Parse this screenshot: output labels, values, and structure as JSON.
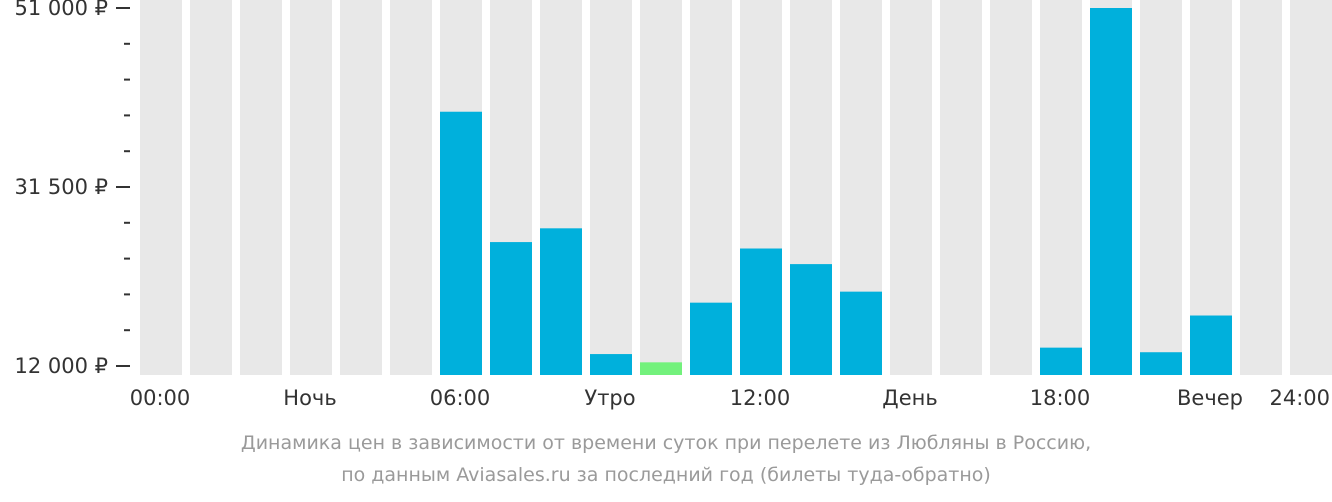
{
  "chart_data": {
    "type": "bar",
    "categories": [
      "00:00",
      "01:00",
      "02:00",
      "03:00",
      "04:00",
      "05:00",
      "06:00",
      "07:00",
      "08:00",
      "09:00",
      "10:00",
      "11:00",
      "12:00",
      "13:00",
      "14:00",
      "15:00",
      "16:00",
      "17:00",
      "18:00",
      "19:00",
      "20:00",
      "21:00",
      "22:00",
      "23:00"
    ],
    "values": [
      null,
      null,
      null,
      null,
      null,
      null,
      39700,
      25500,
      27000,
      13300,
      12400,
      18900,
      24800,
      23100,
      20100,
      null,
      null,
      null,
      14000,
      51000,
      13500,
      17500,
      null,
      null
    ],
    "highlight_index": 10,
    "ylim": [
      12000,
      51000
    ],
    "yticks": [
      "51 000 ₽",
      "31 500 ₽",
      "12 000 ₽"
    ],
    "yticks_values": [
      51000,
      31500,
      12000
    ],
    "minor_ticks_per_interval": 4,
    "xticks": [
      "00:00",
      "Ночь",
      "06:00",
      "Утро",
      "12:00",
      "День",
      "18:00",
      "Вечер",
      "24:00"
    ],
    "colors": {
      "bar": "#00b0dc",
      "highlight": "#73f17c",
      "background_slot": "#e8e8e8",
      "axis": "#333333"
    }
  },
  "caption": {
    "line1": "Динамика цен в зависимости от времени суток при перелете из Любляны в Россию,",
    "line2": "по данным Aviasales.ru за последний год (билеты туда-обратно)"
  }
}
